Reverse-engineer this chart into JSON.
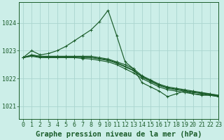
{
  "title": "Graphe pression niveau de la mer (hPa)",
  "background_color": "#cceee8",
  "grid_color": "#aad4ce",
  "line_color": "#1a5c2a",
  "xlim": [
    -0.5,
    23
  ],
  "ylim": [
    1020.55,
    1024.75
  ],
  "yticks": [
    1021,
    1022,
    1023,
    1024
  ],
  "xticks": [
    0,
    1,
    2,
    3,
    4,
    5,
    6,
    7,
    8,
    9,
    10,
    11,
    12,
    13,
    14,
    15,
    16,
    17,
    18,
    19,
    20,
    21,
    22,
    23
  ],
  "series": [
    [
      1022.75,
      1023.0,
      1022.85,
      1022.9,
      1023.0,
      1023.15,
      1023.35,
      1023.55,
      1023.75,
      1024.05,
      1024.45,
      1023.55,
      1022.6,
      1022.35,
      1021.85,
      1021.7,
      1021.55,
      1021.35,
      1021.45,
      1021.55,
      1021.45,
      1021.4,
      1021.4,
      1021.35
    ],
    [
      1022.75,
      1022.85,
      1022.8,
      1022.8,
      1022.8,
      1022.8,
      1022.8,
      1022.8,
      1022.8,
      1022.75,
      1022.7,
      1022.6,
      1022.5,
      1022.35,
      1022.1,
      1021.95,
      1021.8,
      1021.7,
      1021.65,
      1021.6,
      1021.55,
      1021.5,
      1021.45,
      1021.4
    ],
    [
      1022.75,
      1022.8,
      1022.75,
      1022.75,
      1022.75,
      1022.75,
      1022.75,
      1022.72,
      1022.7,
      1022.65,
      1022.6,
      1022.5,
      1022.35,
      1022.2,
      1022.0,
      1021.85,
      1021.7,
      1021.6,
      1021.55,
      1021.5,
      1021.45,
      1021.42,
      1021.4,
      1021.35
    ],
    [
      1022.75,
      1022.82,
      1022.78,
      1022.77,
      1022.77,
      1022.77,
      1022.77,
      1022.76,
      1022.75,
      1022.7,
      1022.65,
      1022.55,
      1022.42,
      1022.28,
      1022.05,
      1021.9,
      1021.75,
      1021.65,
      1021.6,
      1021.55,
      1021.5,
      1021.46,
      1021.42,
      1021.37
    ],
    [
      1022.75,
      1022.84,
      1022.8,
      1022.78,
      1022.78,
      1022.78,
      1022.78,
      1022.77,
      1022.76,
      1022.72,
      1022.67,
      1022.57,
      1022.44,
      1022.3,
      1022.07,
      1021.92,
      1021.77,
      1021.67,
      1021.62,
      1021.57,
      1021.52,
      1021.48,
      1021.44,
      1021.39
    ]
  ],
  "title_fontsize": 7.5,
  "tick_fontsize": 6,
  "tick_color": "#1a5c2a",
  "axis_color": "#1a5c2a"
}
